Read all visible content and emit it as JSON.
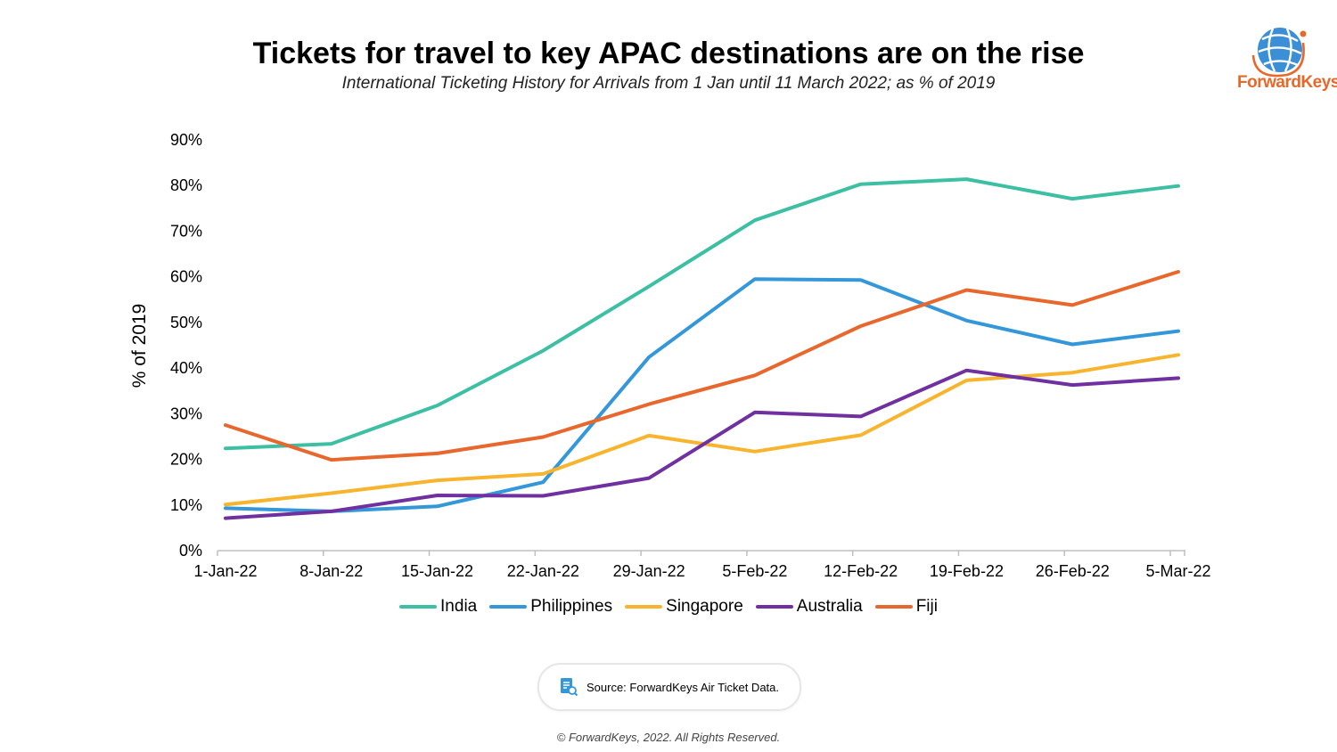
{
  "header": {
    "title": "Tickets for travel to key APAC destinations are on the rise",
    "subtitle": "International Ticketing History for Arrivals from 1 Jan until 11 March 2022; as % of 2019"
  },
  "logo": {
    "text": "ForwardKeys",
    "icon": "globe-icon"
  },
  "source": {
    "text": "Source: ForwardKeys Air Ticket Data.",
    "icon": "document-search-icon"
  },
  "copyright": "© ForwardKeys, 2022. All Rights Reserved.",
  "chart_data": {
    "type": "line",
    "title": "Tickets for travel to key APAC destinations are on the rise",
    "subtitle": "International Ticketing History for Arrivals from 1 Jan until 11 March 2022; as % of 2019",
    "xlabel": "",
    "ylabel": "% of 2019",
    "categories": [
      "1-Jan-22",
      "8-Jan-22",
      "15-Jan-22",
      "22-Jan-22",
      "29-Jan-22",
      "5-Feb-22",
      "12-Feb-22",
      "19-Feb-22",
      "26-Feb-22",
      "5-Mar-22"
    ],
    "ylim": [
      0,
      90
    ],
    "yticks": [
      "0%",
      "10%",
      "20%",
      "30%",
      "40%",
      "50%",
      "60%",
      "70%",
      "80%",
      "90%"
    ],
    "grid": false,
    "legend_position": "bottom",
    "series": [
      {
        "name": "India",
        "color": "#3dbfa3",
        "values": [
          22.4,
          23.4,
          31.8,
          43.8,
          57.9,
          72.4,
          80.3,
          81.4,
          77.1,
          79.9
        ]
      },
      {
        "name": "Philippines",
        "color": "#3497da",
        "values": [
          9.3,
          8.6,
          9.7,
          15.0,
          42.4,
          59.5,
          59.3,
          50.4,
          45.2,
          48.1
        ]
      },
      {
        "name": "Singapore",
        "color": "#f7b42c",
        "values": [
          10.1,
          12.6,
          15.4,
          16.8,
          25.2,
          21.7,
          25.3,
          37.3,
          39.0,
          42.9
        ]
      },
      {
        "name": "Australia",
        "color": "#7030a0",
        "values": [
          7.1,
          8.6,
          12.1,
          12.0,
          15.9,
          30.3,
          29.4,
          39.5,
          36.3,
          37.8
        ]
      },
      {
        "name": "Fiji",
        "color": "#e8672d",
        "values": [
          27.5,
          19.9,
          21.3,
          24.9,
          32.1,
          38.4,
          49.2,
          57.1,
          53.8,
          61.1
        ]
      }
    ]
  }
}
